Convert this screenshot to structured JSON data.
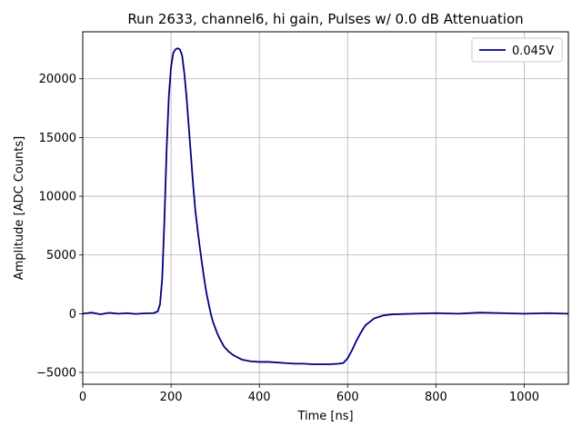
{
  "chart_data": {
    "type": "line",
    "title": "Run 2633, channel6, hi gain, Pulses w/ 0.0 dB Attenuation",
    "xlabel": "Time [ns]",
    "ylabel": "Amplitude [ADC Counts]",
    "xlim": [
      0,
      1100
    ],
    "ylim": [
      -6000,
      24000
    ],
    "xticks": [
      0,
      200,
      400,
      600,
      800,
      1000
    ],
    "xtick_labels": [
      "0",
      "200",
      "400",
      "600",
      "800",
      "1000"
    ],
    "yticks": [
      -5000,
      0,
      5000,
      10000,
      15000,
      20000
    ],
    "ytick_labels": [
      "−5000",
      "0",
      "5000",
      "10000",
      "15000",
      "20000"
    ],
    "grid": true,
    "legend_position": "top-right",
    "series": [
      {
        "name": "0.045V",
        "color": "#000080",
        "x": [
          0,
          20,
          40,
          60,
          80,
          100,
          120,
          140,
          160,
          170,
          175,
          180,
          185,
          190,
          195,
          200,
          205,
          210,
          215,
          220,
          225,
          230,
          235,
          240,
          245,
          250,
          255,
          260,
          265,
          270,
          275,
          280,
          285,
          290,
          295,
          300,
          305,
          310,
          320,
          330,
          340,
          350,
          360,
          380,
          400,
          420,
          440,
          460,
          480,
          500,
          520,
          540,
          560,
          580,
          590,
          600,
          610,
          620,
          630,
          640,
          660,
          680,
          700,
          750,
          800,
          850,
          900,
          950,
          1000,
          1050,
          1100
        ],
        "y": [
          0,
          100,
          -50,
          80,
          0,
          50,
          -20,
          30,
          50,
          200,
          800,
          3000,
          8000,
          14000,
          18500,
          21000,
          22200,
          22500,
          22600,
          22500,
          22000,
          20500,
          18500,
          16000,
          13500,
          11000,
          8800,
          7200,
          5700,
          4300,
          3000,
          1800,
          900,
          0,
          -700,
          -1200,
          -1700,
          -2100,
          -2800,
          -3200,
          -3500,
          -3700,
          -3900,
          -4050,
          -4100,
          -4100,
          -4150,
          -4200,
          -4250,
          -4250,
          -4300,
          -4300,
          -4300,
          -4250,
          -4200,
          -3800,
          -3100,
          -2300,
          -1600,
          -1000,
          -400,
          -150,
          -50,
          0,
          50,
          0,
          100,
          50,
          0,
          50,
          0
        ]
      }
    ]
  }
}
